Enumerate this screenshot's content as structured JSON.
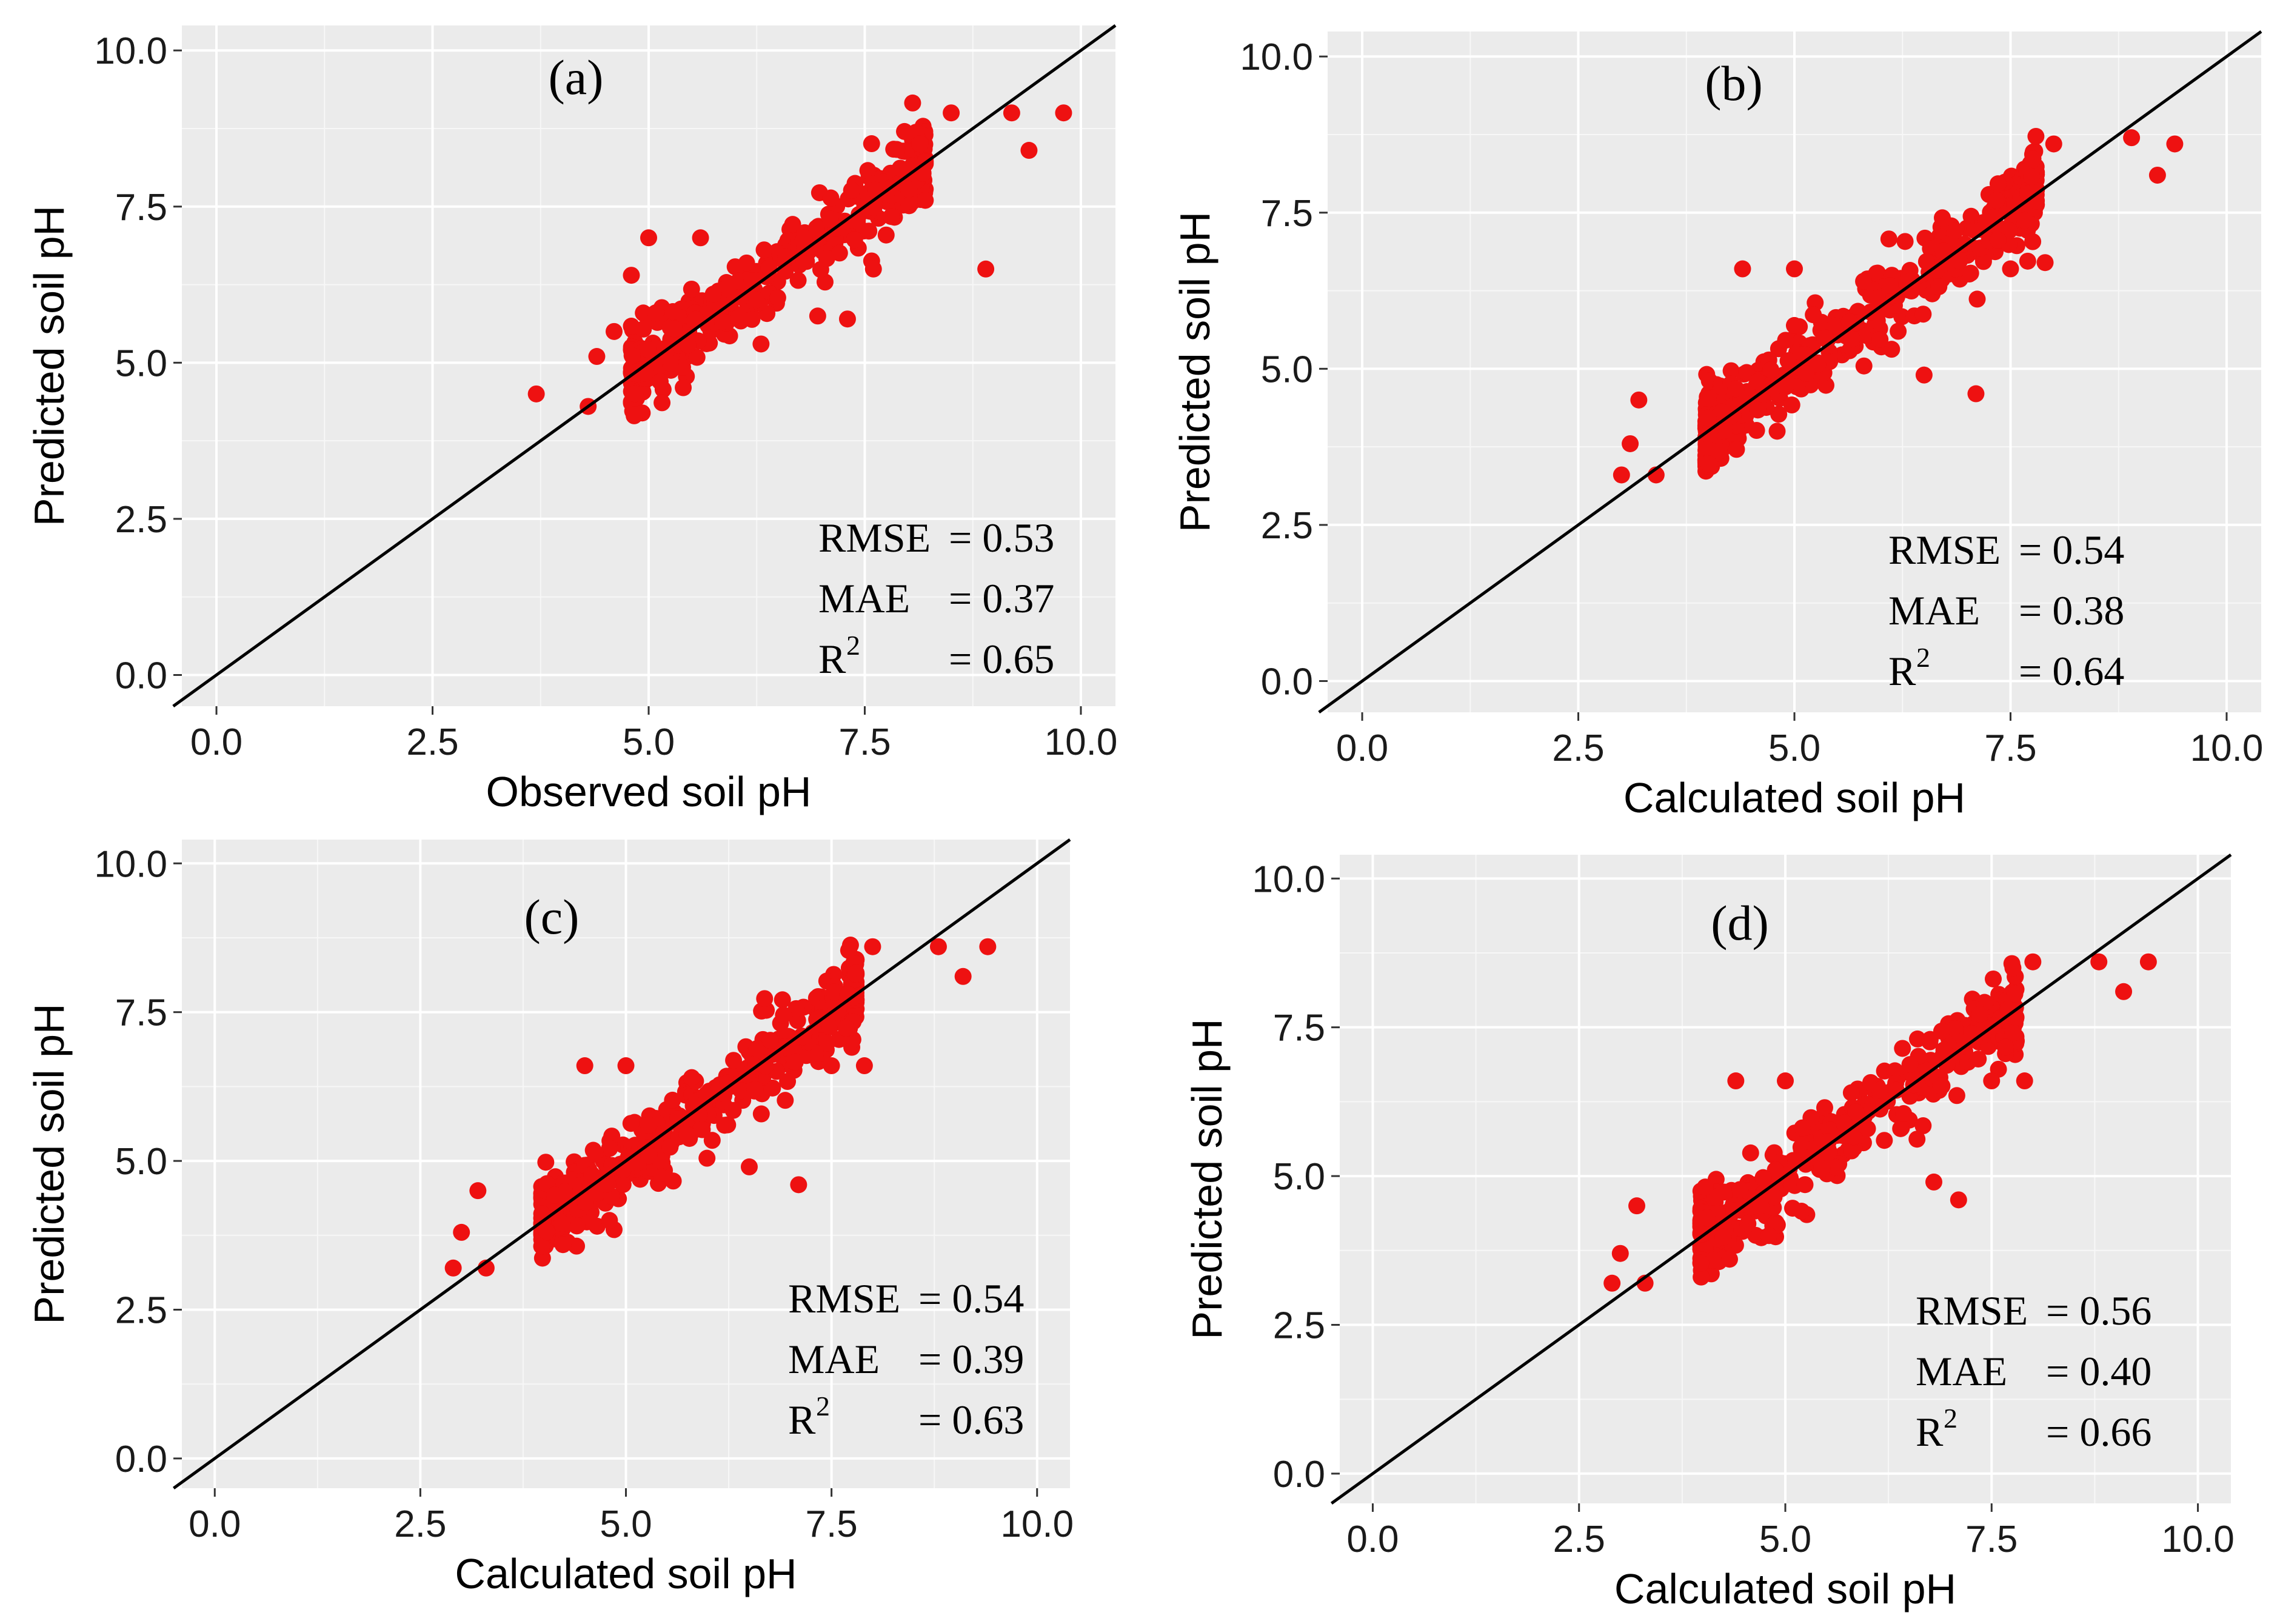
{
  "figure": {
    "description_panels": 4
  },
  "chart_data": [
    {
      "type": "scatter",
      "panel": "(a)",
      "xlabel": "Observed soil pH",
      "ylabel": "Predicted soil pH",
      "xlim": [
        -0.4,
        10.4
      ],
      "ylim": [
        -0.5,
        10.4
      ],
      "xticks": [
        "0.0",
        "2.5",
        "5.0",
        "7.5",
        "10.0"
      ],
      "yticks": [
        "0.0",
        "2.5",
        "5.0",
        "7.5",
        "10.0"
      ],
      "reference_line": "1:1",
      "point_color": "#ee1111",
      "metrics": {
        "rmse_label": "RMSE",
        "rmse_value": "= 0.53",
        "mae_label": "MAE",
        "mae_value": "= 0.37",
        "r2_label": "R",
        "r2_sup": "2",
        "r2_value": "= 0.65"
      },
      "cloud": {
        "x_range": [
          4.2,
          8.2
        ],
        "offset_spread": 0.32,
        "count": 380,
        "seed": 11
      },
      "points": [
        [
          3.7,
          4.5
        ],
        [
          4.3,
          4.3
        ],
        [
          5.0,
          7.0
        ],
        [
          5.6,
          7.0
        ],
        [
          7.3,
          5.7
        ],
        [
          8.9,
          6.5
        ],
        [
          8.5,
          9.0
        ],
        [
          9.2,
          9.0
        ],
        [
          9.4,
          8.4
        ],
        [
          9.8,
          9.0
        ],
        [
          8.2,
          7.6
        ],
        [
          8.0,
          8.1
        ],
        [
          4.8,
          6.4
        ],
        [
          4.6,
          5.5
        ],
        [
          6.8,
          7.0
        ],
        [
          7.1,
          7.3
        ],
        [
          5.4,
          4.6
        ],
        [
          6.3,
          5.3
        ],
        [
          7.6,
          6.5
        ],
        [
          7.8,
          7.8
        ],
        [
          4.4,
          5.1
        ]
      ]
    },
    {
      "type": "scatter",
      "panel": "(b)",
      "xlabel": "Calculated soil pH",
      "ylabel": "Predicted soil pH",
      "xlim": [
        -0.4,
        10.4
      ],
      "ylim": [
        -0.5,
        10.4
      ],
      "xticks": [
        "0.0",
        "2.5",
        "5.0",
        "7.5",
        "10.0"
      ],
      "yticks": [
        "0.0",
        "2.5",
        "5.0",
        "7.5",
        "10.0"
      ],
      "reference_line": "1:1",
      "point_color": "#ee1111",
      "metrics": {
        "rmse_label": "RMSE",
        "rmse_value": "= 0.54",
        "mae_label": "MAE",
        "mae_value": "= 0.38",
        "r2_label": "R",
        "r2_sup": "2",
        "r2_value": "= 0.64"
      },
      "cloud": {
        "x_range": [
          3.3,
          7.8
        ],
        "offset_spread": 0.34,
        "count": 420,
        "seed": 23
      },
      "points": [
        [
          3.0,
          3.3
        ],
        [
          3.1,
          3.8
        ],
        [
          3.4,
          3.3
        ],
        [
          3.2,
          4.5
        ],
        [
          4.4,
          6.6
        ],
        [
          5.0,
          6.6
        ],
        [
          6.5,
          4.9
        ],
        [
          7.1,
          4.6
        ],
        [
          8.9,
          8.7
        ],
        [
          9.2,
          8.1
        ],
        [
          9.4,
          8.6
        ],
        [
          8.0,
          8.6
        ],
        [
          7.9,
          6.7
        ],
        [
          7.5,
          6.6
        ],
        [
          7.7,
          7.8
        ],
        [
          5.8,
          6.4
        ],
        [
          4.8,
          4.0
        ],
        [
          6.2,
          5.6
        ]
      ]
    },
    {
      "type": "scatter",
      "panel": "(c)",
      "xlabel": "Calculated soil pH",
      "ylabel": "Predicted soil pH",
      "xlim": [
        -0.4,
        10.4
      ],
      "ylim": [
        -0.5,
        10.4
      ],
      "xticks": [
        "0.0",
        "2.5",
        "5.0",
        "7.5",
        "10.0"
      ],
      "yticks": [
        "0.0",
        "2.5",
        "5.0",
        "7.5",
        "10.0"
      ],
      "reference_line": "1:1",
      "point_color": "#ee1111",
      "metrics": {
        "rmse_label": "RMSE",
        "rmse_value": "= 0.54",
        "mae_label": "MAE",
        "mae_value": "= 0.39",
        "r2_label": "R",
        "r2_sup": "2",
        "r2_value": "= 0.63"
      },
      "cloud": {
        "x_range": [
          3.3,
          7.8
        ],
        "offset_spread": 0.34,
        "count": 420,
        "seed": 37
      },
      "points": [
        [
          2.9,
          3.2
        ],
        [
          3.0,
          3.8
        ],
        [
          3.3,
          3.2
        ],
        [
          3.2,
          4.5
        ],
        [
          4.5,
          6.6
        ],
        [
          5.0,
          6.6
        ],
        [
          6.5,
          4.9
        ],
        [
          7.1,
          4.6
        ],
        [
          8.8,
          8.6
        ],
        [
          9.1,
          8.1
        ],
        [
          9.4,
          8.6
        ],
        [
          8.0,
          8.6
        ],
        [
          7.9,
          6.6
        ],
        [
          7.5,
          6.6
        ],
        [
          7.7,
          7.8
        ],
        [
          5.8,
          6.4
        ],
        [
          4.8,
          4.0
        ],
        [
          6.2,
          5.6
        ]
      ]
    },
    {
      "type": "scatter",
      "panel": "(d)",
      "xlabel": "Calculated soil pH",
      "ylabel": "Predicted soil pH",
      "xlim": [
        -0.4,
        10.4
      ],
      "ylim": [
        -0.5,
        10.4
      ],
      "xticks": [
        "0.0",
        "2.5",
        "5.0",
        "7.5",
        "10.0"
      ],
      "yticks": [
        "0.0",
        "2.5",
        "5.0",
        "7.5",
        "10.0"
      ],
      "reference_line": "1:1",
      "point_color": "#ee1111",
      "metrics": {
        "rmse_label": "RMSE",
        "rmse_value": "= 0.56",
        "mae_label": "MAE",
        "mae_value": "= 0.40",
        "r2_label": "R",
        "r2_sup": "2",
        "r2_value": "= 0.66"
      },
      "cloud": {
        "x_range": [
          3.3,
          7.8
        ],
        "offset_spread": 0.34,
        "count": 420,
        "seed": 53
      },
      "points": [
        [
          2.9,
          3.2
        ],
        [
          3.0,
          3.7
        ],
        [
          3.3,
          3.2
        ],
        [
          3.2,
          4.5
        ],
        [
          4.4,
          6.6
        ],
        [
          5.0,
          6.6
        ],
        [
          6.8,
          4.9
        ],
        [
          7.1,
          4.6
        ],
        [
          8.8,
          8.6
        ],
        [
          9.1,
          8.1
        ],
        [
          9.4,
          8.6
        ],
        [
          8.0,
          8.6
        ],
        [
          7.9,
          6.6
        ],
        [
          7.5,
          6.6
        ],
        [
          7.7,
          7.8
        ],
        [
          5.8,
          6.4
        ],
        [
          4.8,
          4.0
        ],
        [
          6.2,
          5.6
        ]
      ]
    }
  ]
}
